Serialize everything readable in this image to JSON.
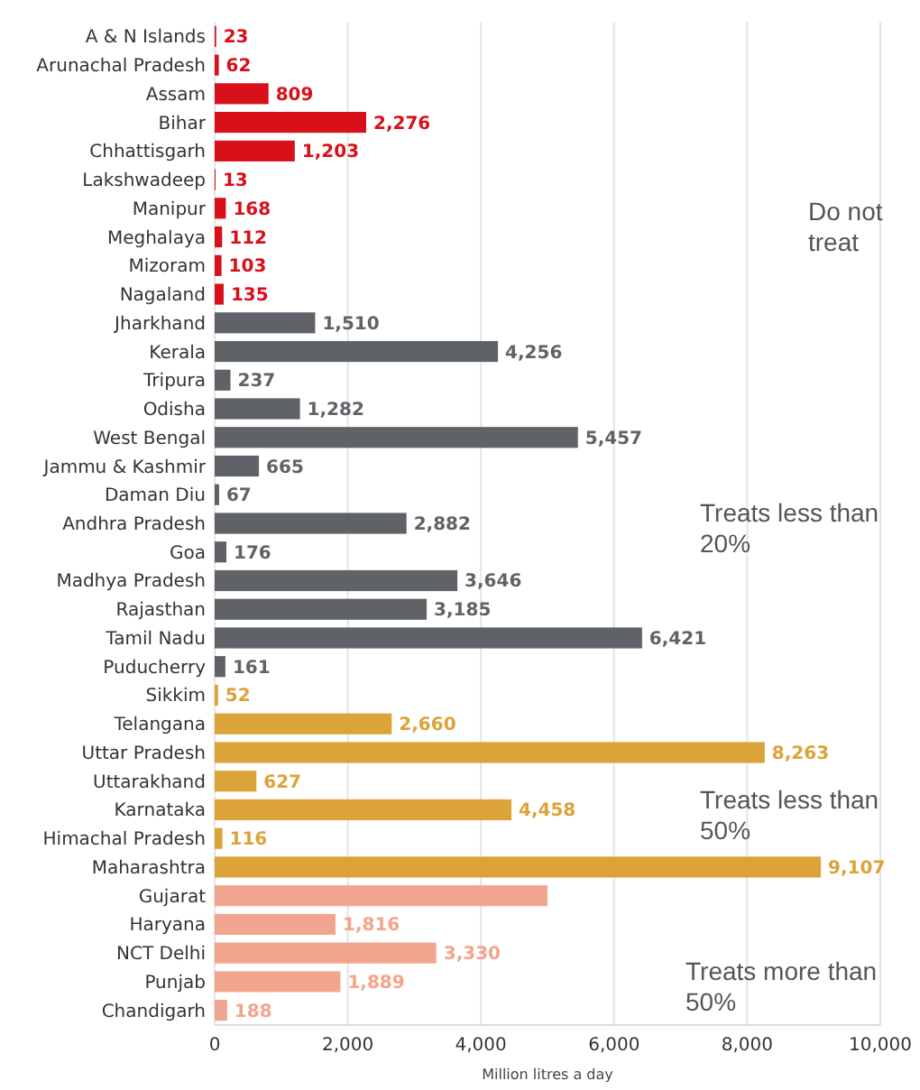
{
  "chart_data": {
    "type": "bar",
    "orientation": "horizontal",
    "xlabel": "Million litres a day",
    "categories": [
      "A & N Islands",
      "Arunachal Pradesh",
      "Assam",
      "Bihar",
      "Chhattisgarh",
      "Lakshwadeep",
      "Manipur",
      "Meghalaya",
      "Mizoram",
      "Nagaland",
      "Jharkhand",
      "Kerala",
      "Tripura",
      "Odisha",
      "West Bengal",
      "Jammu & Kashmir",
      "Daman Diu",
      "Andhra Pradesh",
      "Goa",
      "Madhya Pradesh",
      "Rajasthan",
      "Tamil Nadu",
      "Puducherry",
      "Sikkim",
      "Telangana",
      "Uttar Pradesh",
      "Uttarakhand",
      "Karnataka",
      "Himachal Pradesh",
      "Maharashtra",
      "Gujarat",
      "Haryana",
      "NCT Delhi",
      "Punjab",
      "Chandigarh"
    ],
    "values": [
      23,
      62,
      809,
      2276,
      1203,
      13,
      168,
      112,
      103,
      135,
      1510,
      4256,
      237,
      1282,
      5457,
      665,
      67,
      2882,
      176,
      3646,
      3185,
      6421,
      161,
      52,
      2660,
      8263,
      627,
      4458,
      116,
      9107,
      5000,
      1816,
      3330,
      1889,
      188
    ],
    "value_labels": [
      "23",
      "62",
      "809",
      "2,276",
      "1,203",
      "13",
      "168",
      "112",
      "103",
      "135",
      "1,510",
      "4,256",
      "237",
      "1,282",
      "5,457",
      "665",
      "67",
      "2,882",
      "176",
      "3,646",
      "3,185",
      "6,421",
      "161",
      "52",
      "2,660",
      "8,263",
      "627",
      "4,458",
      "116",
      "9,107",
      null,
      "1,816",
      "3,330",
      "1,889",
      "188"
    ],
    "colors": [
      "#d7101a",
      "#d7101a",
      "#d7101a",
      "#d7101a",
      "#d7101a",
      "#d7101a",
      "#d7101a",
      "#d7101a",
      "#d7101a",
      "#d7101a",
      "#5f6368",
      "#5f6368",
      "#5f6368",
      "#5f6368",
      "#5f6368",
      "#5f6368",
      "#5f6368",
      "#5f6368",
      "#5f6368",
      "#5f6368",
      "#5f6368",
      "#5f6368",
      "#5f6368",
      "#dba338",
      "#dba338",
      "#dba338",
      "#dba338",
      "#dba338",
      "#dba338",
      "#dba338",
      "#f2a58e",
      "#f2a58e",
      "#f2a58e",
      "#f2a58e",
      "#f2a58e"
    ],
    "xlim": [
      0,
      10000
    ],
    "xticks": [
      {
        "value": 0,
        "label": "0"
      },
      {
        "value": 2000,
        "label": "2,000"
      },
      {
        "value": 4000,
        "label": "4,000"
      },
      {
        "value": 6000,
        "label": "6,000"
      },
      {
        "value": 8000,
        "label": "8,000"
      },
      {
        "value": 10000,
        "label": "10,000"
      }
    ],
    "grid": "x",
    "annotations": [
      "Do not treat",
      "Treats less than 20%",
      "Treats less than 50%",
      "Treats more than 50%"
    ]
  }
}
